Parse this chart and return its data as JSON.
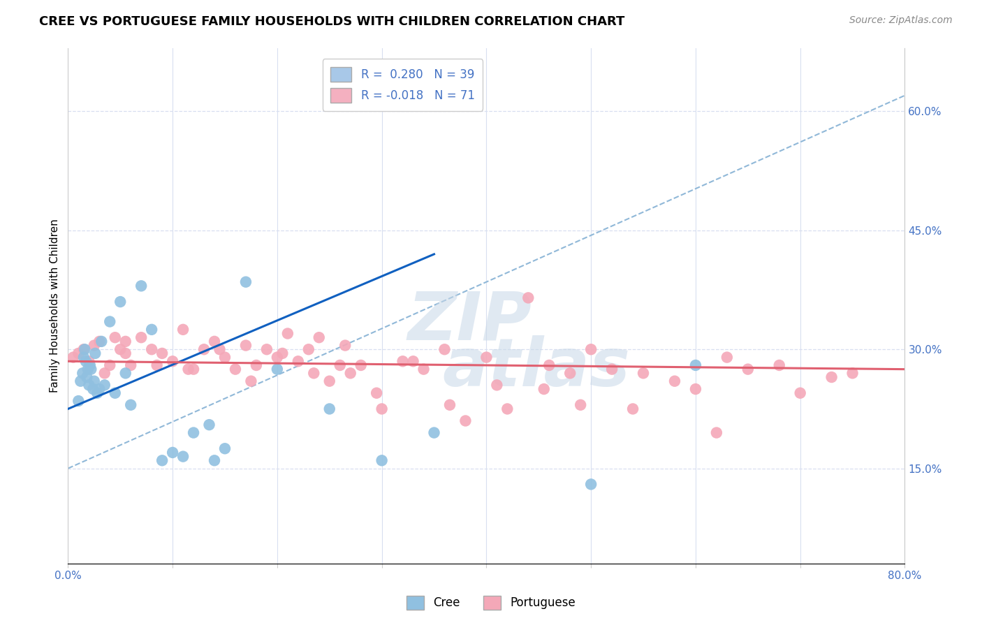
{
  "title": "CREE VS PORTUGUESE FAMILY HOUSEHOLDS WITH CHILDREN CORRELATION CHART",
  "source": "Source: ZipAtlas.com",
  "ylabel": "Family Households with Children",
  "x_ticks": [
    0.0,
    10.0,
    20.0,
    30.0,
    40.0,
    50.0,
    60.0,
    70.0,
    80.0
  ],
  "y_ticks": [
    15.0,
    30.0,
    45.0,
    60.0
  ],
  "xlim": [
    0,
    80
  ],
  "ylim": [
    3,
    68
  ],
  "legend_items": [
    {
      "label": "R =  0.280   N = 39",
      "color": "#a8c8e8"
    },
    {
      "label": "R = -0.018   N = 71",
      "color": "#f4b0c0"
    }
  ],
  "legend_bottom": [
    "Cree",
    "Portuguese"
  ],
  "cree_color": "#90c0e0",
  "portuguese_color": "#f4a8b8",
  "cree_trend_color": "#1060c0",
  "portuguese_trend_color": "#e06070",
  "diag_line_color": "#90b8d8",
  "background_color": "#ffffff",
  "grid_color": "#d8dff0",
  "cree_x": [
    1.0,
    1.2,
    1.4,
    1.5,
    1.6,
    1.7,
    1.8,
    1.9,
    2.0,
    2.1,
    2.2,
    2.4,
    2.5,
    2.6,
    2.8,
    3.0,
    3.2,
    3.5,
    4.0,
    4.5,
    5.0,
    5.5,
    6.0,
    7.0,
    8.0,
    9.0,
    10.0,
    11.0,
    12.0,
    13.5,
    14.0,
    15.0,
    17.0,
    20.0,
    25.0,
    30.0,
    35.0,
    50.0,
    60.0
  ],
  "cree_y": [
    23.5,
    26.0,
    27.0,
    29.0,
    30.0,
    28.5,
    26.5,
    27.5,
    25.5,
    28.0,
    27.5,
    25.0,
    26.0,
    29.5,
    24.5,
    25.0,
    31.0,
    25.5,
    33.5,
    24.5,
    36.0,
    27.0,
    23.0,
    38.0,
    32.5,
    16.0,
    17.0,
    16.5,
    19.5,
    20.5,
    16.0,
    17.5,
    38.5,
    27.5,
    22.5,
    16.0,
    19.5,
    13.0,
    28.0
  ],
  "portuguese_x": [
    0.5,
    1.0,
    1.5,
    2.0,
    2.5,
    3.0,
    3.5,
    4.0,
    4.5,
    5.0,
    5.5,
    6.0,
    7.0,
    8.0,
    9.0,
    10.0,
    11.0,
    12.0,
    13.0,
    14.0,
    15.0,
    16.0,
    17.0,
    18.0,
    19.0,
    20.0,
    21.0,
    22.0,
    23.0,
    24.0,
    25.0,
    26.0,
    27.0,
    28.0,
    30.0,
    32.0,
    34.0,
    36.0,
    38.0,
    40.0,
    42.0,
    44.0,
    46.0,
    48.0,
    50.0,
    52.0,
    55.0,
    58.0,
    60.0,
    63.0,
    65.0,
    68.0,
    70.0,
    73.0,
    75.0,
    5.5,
    8.5,
    11.5,
    14.5,
    17.5,
    20.5,
    23.5,
    26.5,
    29.5,
    33.0,
    36.5,
    41.0,
    45.5,
    49.0,
    54.0,
    62.0
  ],
  "portuguese_y": [
    29.0,
    29.5,
    30.0,
    28.5,
    30.5,
    31.0,
    27.0,
    28.0,
    31.5,
    30.0,
    29.5,
    28.0,
    31.5,
    30.0,
    29.5,
    28.5,
    32.5,
    27.5,
    30.0,
    31.0,
    29.0,
    27.5,
    30.5,
    28.0,
    30.0,
    29.0,
    32.0,
    28.5,
    30.0,
    31.5,
    26.0,
    28.0,
    27.0,
    28.0,
    22.5,
    28.5,
    27.5,
    30.0,
    21.0,
    29.0,
    22.5,
    36.5,
    28.0,
    27.0,
    30.0,
    27.5,
    27.0,
    26.0,
    25.0,
    29.0,
    27.5,
    28.0,
    24.5,
    26.5,
    27.0,
    31.0,
    28.0,
    27.5,
    30.0,
    26.0,
    29.5,
    27.0,
    30.5,
    24.5,
    28.5,
    23.0,
    25.5,
    25.0,
    23.0,
    22.5,
    19.5
  ],
  "cree_trend_x0": 0.0,
  "cree_trend_y0": 22.5,
  "cree_trend_x1": 35.0,
  "cree_trend_y1": 42.0,
  "port_trend_x0": 0.0,
  "port_trend_y0": 28.5,
  "port_trend_x1": 80.0,
  "port_trend_y1": 27.5,
  "diag_x0": 0.0,
  "diag_y0": 15.0,
  "diag_x1": 80.0,
  "diag_y1": 62.0,
  "title_fontsize": 13,
  "source_fontsize": 10,
  "tick_fontsize": 11,
  "ylabel_fontsize": 11,
  "legend_fontsize": 12
}
